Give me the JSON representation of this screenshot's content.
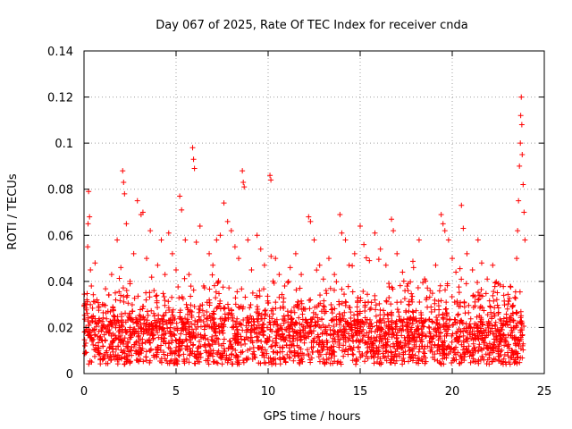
{
  "chart_data": {
    "type": "scatter",
    "title": "Day 067 of 2025, Rate Of TEC Index for receiver cnda",
    "xlabel": "GPS time / hours",
    "ylabel": "ROTI / TECUs",
    "xlim": [
      0,
      25
    ],
    "ylim": [
      0,
      0.14
    ],
    "xticks": [
      0,
      5,
      10,
      15,
      20,
      25
    ],
    "yticks": [
      0,
      0.02,
      0.04,
      0.06,
      0.08,
      0.1,
      0.12,
      0.14
    ],
    "xtick_labels": [
      "0",
      "5",
      "10",
      "15",
      "20",
      "25"
    ],
    "ytick_labels": [
      "0",
      "0.02",
      "0.04",
      "0.06",
      "0.08",
      "0.1",
      "0.12",
      "0.14"
    ],
    "grid": true,
    "marker": "+",
    "color": "#ff0000",
    "series": [
      {
        "name": "ROTI",
        "points": [
          [
            0.05,
            0.012
          ],
          [
            0.1,
            0.02
          ],
          [
            0.15,
            0.03
          ],
          [
            0.2,
            0.055
          ],
          [
            0.22,
            0.065
          ],
          [
            0.25,
            0.079
          ],
          [
            0.3,
            0.068
          ],
          [
            0.35,
            0.045
          ],
          [
            0.4,
            0.038
          ],
          [
            0.5,
            0.025
          ],
          [
            0.6,
            0.048
          ],
          [
            0.7,
            0.032
          ],
          [
            0.8,
            0.022
          ],
          [
            1.0,
            0.03
          ],
          [
            1.2,
            0.018
          ],
          [
            1.3,
            0.027
          ],
          [
            1.5,
            0.043
          ],
          [
            1.7,
            0.035
          ],
          [
            1.8,
            0.058
          ],
          [
            2.0,
            0.046
          ],
          [
            2.1,
            0.088
          ],
          [
            2.15,
            0.083
          ],
          [
            2.2,
            0.078
          ],
          [
            2.3,
            0.065
          ],
          [
            2.5,
            0.04
          ],
          [
            2.7,
            0.052
          ],
          [
            2.9,
            0.075
          ],
          [
            3.1,
            0.069
          ],
          [
            3.2,
            0.07
          ],
          [
            3.4,
            0.05
          ],
          [
            3.6,
            0.062
          ],
          [
            3.8,
            0.036
          ],
          [
            4.0,
            0.047
          ],
          [
            4.2,
            0.058
          ],
          [
            4.4,
            0.043
          ],
          [
            4.6,
            0.061
          ],
          [
            4.8,
            0.052
          ],
          [
            5.0,
            0.045
          ],
          [
            5.2,
            0.077
          ],
          [
            5.3,
            0.071
          ],
          [
            5.5,
            0.058
          ],
          [
            5.7,
            0.043
          ],
          [
            5.9,
            0.098
          ],
          [
            5.95,
            0.093
          ],
          [
            6.0,
            0.089
          ],
          [
            6.1,
            0.057
          ],
          [
            6.3,
            0.064
          ],
          [
            6.5,
            0.038
          ],
          [
            6.8,
            0.052
          ],
          [
            7.0,
            0.047
          ],
          [
            7.2,
            0.058
          ],
          [
            7.4,
            0.06
          ],
          [
            7.6,
            0.074
          ],
          [
            7.8,
            0.066
          ],
          [
            8.0,
            0.062
          ],
          [
            8.2,
            0.055
          ],
          [
            8.4,
            0.05
          ],
          [
            8.6,
            0.088
          ],
          [
            8.65,
            0.083
          ],
          [
            8.7,
            0.081
          ],
          [
            8.9,
            0.058
          ],
          [
            9.1,
            0.045
          ],
          [
            9.4,
            0.06
          ],
          [
            9.6,
            0.054
          ],
          [
            9.8,
            0.047
          ],
          [
            10.1,
            0.086
          ],
          [
            10.15,
            0.084
          ],
          [
            10.4,
            0.05
          ],
          [
            10.6,
            0.043
          ],
          [
            10.9,
            0.038
          ],
          [
            11.2,
            0.046
          ],
          [
            11.5,
            0.052
          ],
          [
            11.8,
            0.043
          ],
          [
            12.2,
            0.068
          ],
          [
            12.3,
            0.066
          ],
          [
            12.5,
            0.058
          ],
          [
            12.8,
            0.047
          ],
          [
            13.0,
            0.041
          ],
          [
            13.3,
            0.05
          ],
          [
            13.6,
            0.043
          ],
          [
            13.9,
            0.069
          ],
          [
            14.0,
            0.061
          ],
          [
            14.2,
            0.058
          ],
          [
            14.4,
            0.047
          ],
          [
            14.7,
            0.052
          ],
          [
            15.0,
            0.064
          ],
          [
            15.2,
            0.056
          ],
          [
            15.5,
            0.049
          ],
          [
            15.8,
            0.061
          ],
          [
            16.1,
            0.054
          ],
          [
            16.4,
            0.047
          ],
          [
            16.7,
            0.067
          ],
          [
            16.8,
            0.062
          ],
          [
            17.0,
            0.052
          ],
          [
            17.3,
            0.044
          ],
          [
            17.6,
            0.039
          ],
          [
            17.9,
            0.046
          ],
          [
            18.2,
            0.058
          ],
          [
            18.5,
            0.041
          ],
          [
            18.8,
            0.036
          ],
          [
            19.1,
            0.047
          ],
          [
            19.4,
            0.069
          ],
          [
            19.5,
            0.065
          ],
          [
            19.6,
            0.062
          ],
          [
            19.8,
            0.058
          ],
          [
            20.0,
            0.05
          ],
          [
            20.2,
            0.044
          ],
          [
            20.5,
            0.073
          ],
          [
            20.6,
            0.063
          ],
          [
            20.8,
            0.052
          ],
          [
            21.1,
            0.045
          ],
          [
            21.4,
            0.058
          ],
          [
            21.6,
            0.048
          ],
          [
            21.9,
            0.041
          ],
          [
            22.2,
            0.047
          ],
          [
            22.5,
            0.039
          ],
          [
            22.8,
            0.034
          ],
          [
            23.0,
            0.028
          ],
          [
            23.2,
            0.025
          ],
          [
            23.4,
            0.033
          ],
          [
            23.5,
            0.05
          ],
          [
            23.55,
            0.062
          ],
          [
            23.6,
            0.075
          ],
          [
            23.65,
            0.09
          ],
          [
            23.7,
            0.1
          ],
          [
            23.72,
            0.112
          ],
          [
            23.75,
            0.12
          ],
          [
            23.78,
            0.108
          ],
          [
            23.8,
            0.095
          ],
          [
            23.85,
            0.082
          ],
          [
            23.9,
            0.07
          ],
          [
            23.95,
            0.058
          ]
        ]
      }
    ]
  }
}
